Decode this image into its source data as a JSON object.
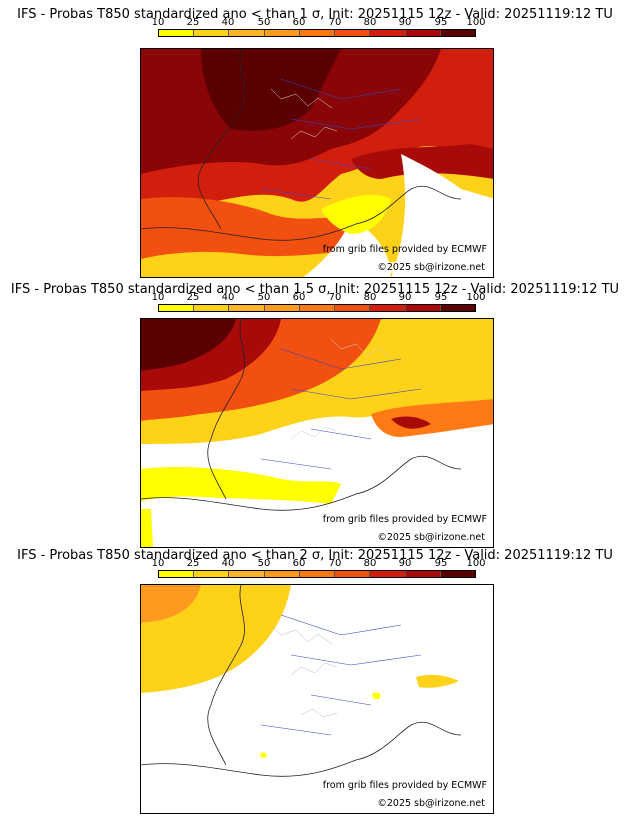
{
  "colors": {
    "c10": "#ffff00",
    "c25": "#ffd21a",
    "c40": "#ffb42a",
    "c50": "#ff9a20",
    "c60": "#ff7a14",
    "c70": "#f25010",
    "c80": "#d21e0c",
    "c90": "#a80a0a",
    "c95": "#8a0606",
    "c100": "#5a0000"
  },
  "scale_ticks": [
    "10",
    "25",
    "40",
    "50",
    "60",
    "70",
    "80",
    "90",
    "95",
    "100"
  ],
  "credits": {
    "source": "from grib files provided by ECMWF",
    "copyright": "©2025 sb@irizone.net"
  },
  "panels": [
    {
      "title": "IFS - Probas T850  standardized ano < than 1 σ, Init: 20251115 12z - Valid: 20251119:12 TU",
      "threshold_sigma": 1
    },
    {
      "title": "IFS - Probas T850  standardized ano < than 1.5 σ, Init: 20251115 12z - Valid: 20251119:12 TU",
      "threshold_sigma": 1.5
    },
    {
      "title": "IFS - Probas T850  standardized ano < than 2 σ, Init: 20251115 12z - Valid: 20251119:12 TU",
      "threshold_sigma": 2
    }
  ]
}
